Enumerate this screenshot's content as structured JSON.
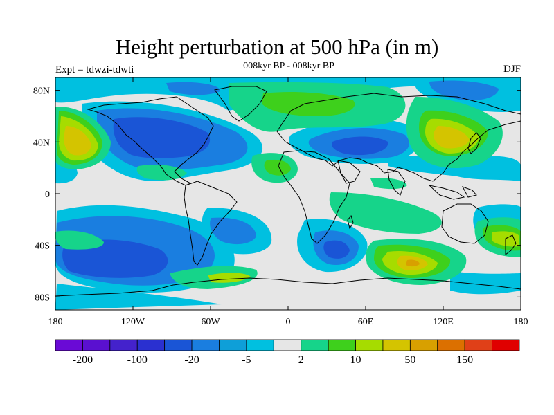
{
  "title": "Height perturbation at 500 hPa (in m)",
  "subtitle": "008kyr BP - 008kyr BP",
  "left_label": "Expt = tdwzi-tdwti",
  "right_label": "DJF",
  "map": {
    "lon_range": [
      -180,
      180
    ],
    "lat_range": [
      -90,
      90
    ],
    "x_ticks": [
      {
        "lon": -180,
        "label": "180"
      },
      {
        "lon": -120,
        "label": "120W"
      },
      {
        "lon": -60,
        "label": "60W"
      },
      {
        "lon": 0,
        "label": "0"
      },
      {
        "lon": 60,
        "label": "60E"
      },
      {
        "lon": 120,
        "label": "120E"
      },
      {
        "lon": 180,
        "label": "180"
      }
    ],
    "y_ticks": [
      {
        "lat": 80,
        "label": "80N"
      },
      {
        "lat": 40,
        "label": "40N"
      },
      {
        "lat": 0,
        "label": "0"
      },
      {
        "lat": -40,
        "label": "40S"
      },
      {
        "lat": -80,
        "label": "80S"
      }
    ],
    "background_color": "#e6e6e6",
    "coastline_color": "#000000"
  },
  "colorbar": {
    "colors": [
      "#6a0ad6",
      "#5a10d0",
      "#4422cc",
      "#2a30d0",
      "#1a55d6",
      "#1a7ee0",
      "#0e9fd8",
      "#00c0e0",
      "#e6e6e6",
      "#16d48a",
      "#3ed01c",
      "#a6dc00",
      "#d4c400",
      "#d8a000",
      "#dc7000",
      "#e04018",
      "#e00000"
    ],
    "labels": [
      {
        "after_box": 1,
        "text": "-200"
      },
      {
        "after_box": 3,
        "text": "-100"
      },
      {
        "after_box": 5,
        "text": "-20"
      },
      {
        "after_box": 7,
        "text": "-5"
      },
      {
        "after_box": 9,
        "text": "2"
      },
      {
        "after_box": 11,
        "text": "10"
      },
      {
        "after_box": 13,
        "text": "50"
      },
      {
        "after_box": 15,
        "text": "150"
      }
    ]
  }
}
